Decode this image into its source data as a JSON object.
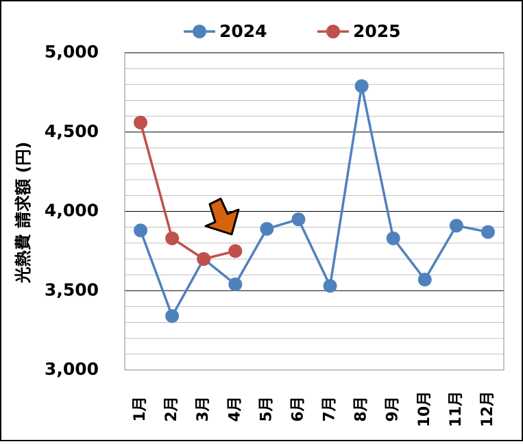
{
  "chart_data": {
    "type": "line",
    "y_axis_label": "光熱費 請求額 (円)",
    "categories": [
      "1月",
      "2月",
      "3月",
      "4月",
      "5月",
      "6月",
      "7月",
      "8月",
      "9月",
      "10月",
      "11月",
      "12月"
    ],
    "series": [
      {
        "name": "2024",
        "color": "#4f81bd",
        "values": [
          3880,
          3340,
          3700,
          3540,
          3890,
          3950,
          3530,
          4790,
          3830,
          3570,
          3910,
          3870
        ]
      },
      {
        "name": "2025",
        "color": "#c0504d",
        "values": [
          4560,
          3830,
          3700,
          3750,
          null,
          null,
          null,
          null,
          null,
          null,
          null,
          null
        ]
      }
    ],
    "ylim": [
      3000,
      5000
    ],
    "yticks": [
      {
        "value": 3000,
        "label": "3,000"
      },
      {
        "value": 3500,
        "label": "3,500"
      },
      {
        "value": 4000,
        "label": "4,000"
      },
      {
        "value": 4500,
        "label": "4,500"
      },
      {
        "value": 5000,
        "label": "5,000"
      }
    ],
    "yticks_minor": [
      3100,
      3200,
      3300,
      3400,
      3600,
      3700,
      3800,
      3900,
      4100,
      4200,
      4300,
      4400,
      4600,
      4700,
      4800,
      4900
    ],
    "grid": true,
    "legend": "top"
  }
}
